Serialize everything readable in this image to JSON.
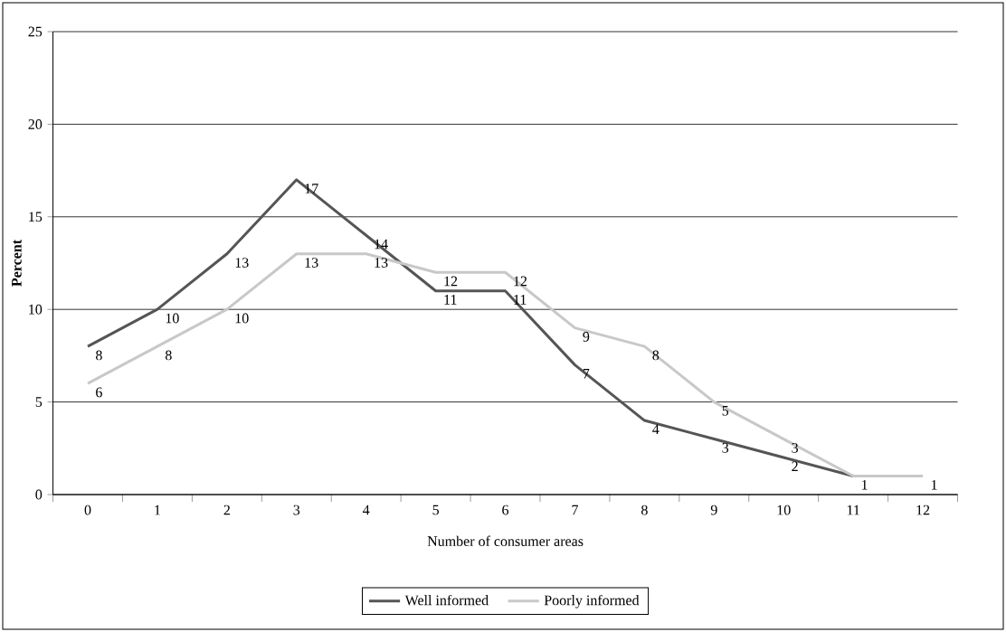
{
  "chart_data": {
    "type": "line",
    "xlabel": "Number of consumer areas",
    "ylabel": "Percent",
    "categories": [
      "0",
      "1",
      "2",
      "3",
      "4",
      "5",
      "6",
      "7",
      "8",
      "9",
      "10",
      "11",
      "12"
    ],
    "series": [
      {
        "name": "Well informed",
        "color": "#555555",
        "values": [
          8,
          10,
          13,
          17,
          14,
          11,
          11,
          7,
          4,
          3,
          2,
          1,
          null
        ],
        "value_labels": [
          "8",
          "10",
          "13",
          "17",
          "14",
          "11",
          "11",
          "7",
          "4",
          "3",
          "2",
          "1",
          null
        ]
      },
      {
        "name": "Poorly informed",
        "color": "#c8c8c8",
        "values": [
          6,
          8,
          10,
          13,
          13,
          12,
          12,
          9,
          8,
          5,
          3,
          1,
          1
        ],
        "value_labels": [
          "6",
          "8",
          "10",
          "13",
          "13",
          "12",
          "12",
          "9",
          "8",
          "5",
          "3",
          null,
          "1"
        ]
      }
    ],
    "ylim": [
      0,
      25
    ],
    "yticks": [
      0,
      5,
      10,
      15,
      20,
      25
    ],
    "grid": "y",
    "legend": "bottom",
    "marker": "none",
    "line_style": "solid"
  }
}
